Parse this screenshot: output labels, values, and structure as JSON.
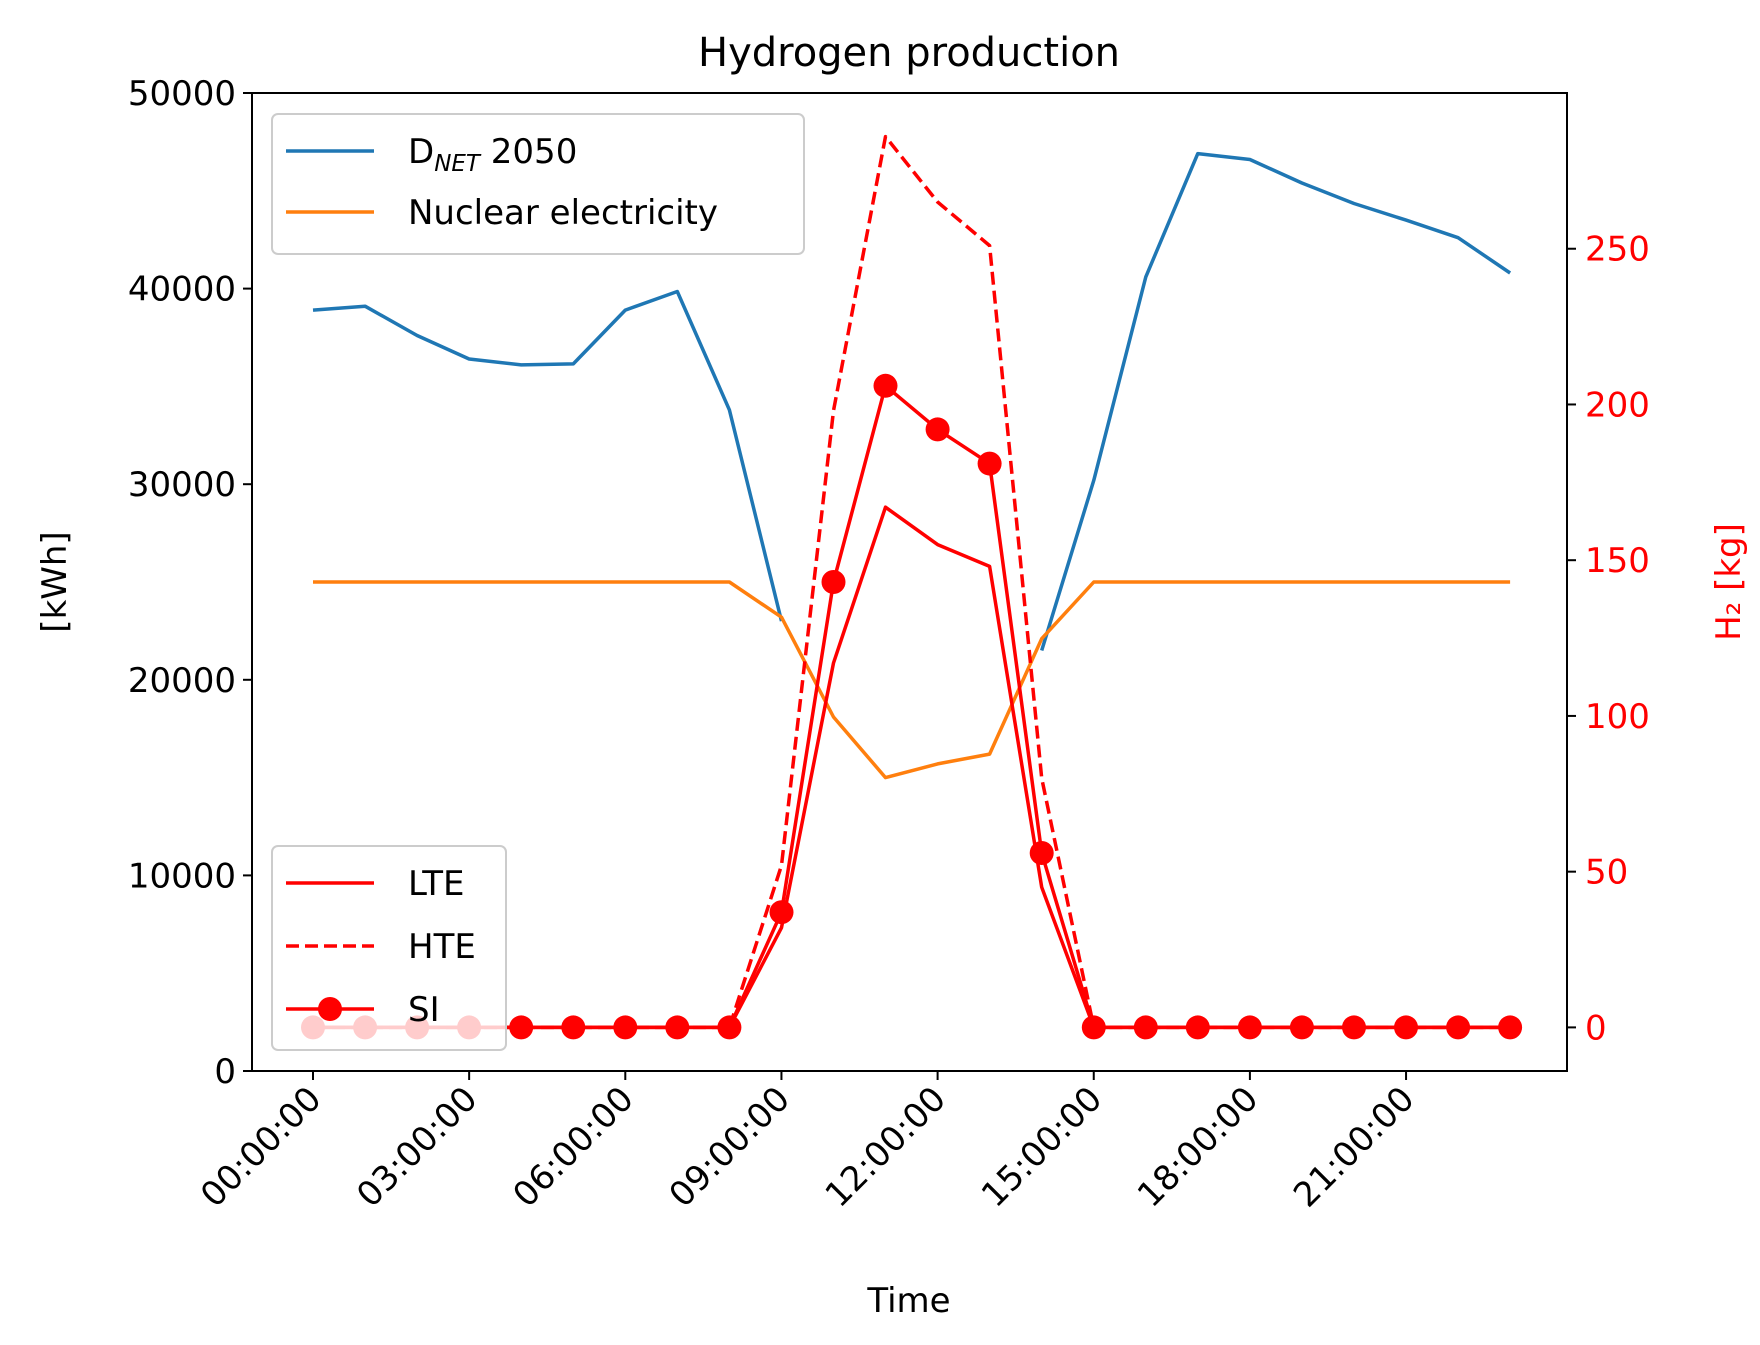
{
  "chart_data": {
    "type": "line",
    "title": "Hydrogen production",
    "xlabel": "Time",
    "ylabel_left": "[kWh]",
    "ylabel_right": "H₂ [kg]",
    "x": [
      "00:00:00",
      "01:00:00",
      "02:00:00",
      "03:00:00",
      "04:00:00",
      "05:00:00",
      "06:00:00",
      "07:00:00",
      "08:00:00",
      "09:00:00",
      "10:00:00",
      "11:00:00",
      "12:00:00",
      "13:00:00",
      "14:00:00",
      "15:00:00",
      "16:00:00",
      "17:00:00",
      "18:00:00",
      "19:00:00",
      "20:00:00",
      "21:00:00",
      "22:00:00",
      "23:00:00"
    ],
    "x_tick_labels": [
      "00:00:00",
      "03:00:00",
      "06:00:00",
      "09:00:00",
      "12:00:00",
      "15:00:00",
      "18:00:00",
      "21:00:00"
    ],
    "ylim_left": [
      0,
      50000
    ],
    "y_ticks_left": [
      "0",
      "10000",
      "20000",
      "30000",
      "40000",
      "50000"
    ],
    "ylim_right": [
      -14,
      300
    ],
    "y_ticks_right": [
      "0",
      "50",
      "100",
      "150",
      "200",
      "250"
    ],
    "grid": false,
    "legend_upper": {
      "placement": "upper-left",
      "entries": [
        {
          "base": "D",
          "sub": "NET",
          "rest": " 2050"
        },
        {
          "label": "Nuclear electricity"
        }
      ]
    },
    "legend_lower": {
      "placement": "lower-left",
      "entries": [
        "LTE",
        "HTE",
        "SI"
      ]
    },
    "series_left": [
      {
        "name": "D_NET 2050",
        "color": "#1f77b4",
        "values": [
          38900,
          39100,
          37600,
          36400,
          36100,
          36150,
          38900,
          39850,
          33800,
          23000,
          null,
          null,
          null,
          null,
          21500,
          30200,
          40600,
          46900,
          46600,
          45400,
          44350,
          43500,
          42600,
          40800
        ]
      },
      {
        "name": "Nuclear electricity",
        "color": "#ff7f0e",
        "values": [
          25000,
          25000,
          25000,
          25000,
          25000,
          25000,
          25000,
          25000,
          25000,
          23200,
          18100,
          15000,
          15700,
          16200,
          22100,
          25000,
          25000,
          25000,
          25000,
          25000,
          25000,
          25000,
          25000,
          25000
        ]
      }
    ],
    "series_right": [
      {
        "name": "LTE",
        "color": "#ff0000",
        "style": "solid",
        "values": [
          0,
          0,
          0,
          0,
          0,
          0,
          0,
          0,
          0,
          32,
          117,
          167,
          155,
          148,
          45,
          0,
          0,
          0,
          0,
          0,
          0,
          0,
          0,
          0
        ]
      },
      {
        "name": "HTE",
        "color": "#ff0000",
        "style": "dashed",
        "values": [
          0,
          0,
          0,
          0,
          0,
          0,
          0,
          0,
          0,
          52,
          198,
          286,
          265,
          251,
          80,
          0,
          0,
          0,
          0,
          0,
          0,
          0,
          0,
          0
        ]
      },
      {
        "name": "SI",
        "color": "#ff0000",
        "style": "marker",
        "values": [
          0,
          0,
          0,
          0,
          0,
          0,
          0,
          0,
          0,
          37,
          143,
          206,
          192,
          181,
          56,
          0,
          0,
          0,
          0,
          0,
          0,
          0,
          0,
          0
        ]
      }
    ]
  }
}
